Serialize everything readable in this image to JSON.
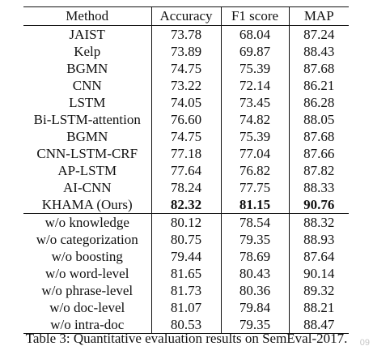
{
  "table": {
    "columns": [
      "Method",
      "Accuracy",
      "F1 score",
      "MAP"
    ],
    "baselines": [
      {
        "method": "JAIST",
        "accuracy": "73.78",
        "f1": "68.04",
        "map": "87.24"
      },
      {
        "method": "Kelp",
        "accuracy": "73.89",
        "f1": "69.87",
        "map": "88.43"
      },
      {
        "method": "BGMN",
        "accuracy": "74.75",
        "f1": "75.39",
        "map": "87.68"
      },
      {
        "method": "CNN",
        "accuracy": "73.22",
        "f1": "72.14",
        "map": "86.21"
      },
      {
        "method": "LSTM",
        "accuracy": "74.05",
        "f1": "73.45",
        "map": "86.28"
      },
      {
        "method": "Bi-LSTM-attention",
        "accuracy": "76.60",
        "f1": "74.82",
        "map": "88.05"
      },
      {
        "method": "BGMN",
        "accuracy": "74.75",
        "f1": "75.39",
        "map": "87.68"
      },
      {
        "method": "CNN-LSTM-CRF",
        "accuracy": "77.18",
        "f1": "77.04",
        "map": "87.66"
      },
      {
        "method": "AP-LSTM",
        "accuracy": "77.64",
        "f1": "76.82",
        "map": "87.82"
      },
      {
        "method": "AI-CNN",
        "accuracy": "78.24",
        "f1": "77.75",
        "map": "88.33"
      },
      {
        "method": "KHAMA (Ours)",
        "accuracy": "82.32",
        "f1": "81.15",
        "map": "90.76"
      }
    ],
    "ablations": [
      {
        "method": "w/o knowledge",
        "accuracy": "80.12",
        "f1": "78.54",
        "map": "88.32"
      },
      {
        "method": "w/o categorization",
        "accuracy": "80.75",
        "f1": "79.35",
        "map": "88.93"
      },
      {
        "method": "w/o boosting",
        "accuracy": "79.44",
        "f1": "78.69",
        "map": "87.64"
      },
      {
        "method": "w/o word-level",
        "accuracy": "81.65",
        "f1": "80.43",
        "map": "90.14"
      },
      {
        "method": "w/o phrase-level",
        "accuracy": "81.73",
        "f1": "80.36",
        "map": "89.32"
      },
      {
        "method": "w/o doc-level",
        "accuracy": "81.07",
        "f1": "79.84",
        "map": "88.21"
      },
      {
        "method": "w/o intra-doc",
        "accuracy": "80.53",
        "f1": "79.35",
        "map": "88.47"
      }
    ]
  },
  "caption": "Table 3: Quantitative evaluation results on SemEval-2017.",
  "watermark": "09"
}
